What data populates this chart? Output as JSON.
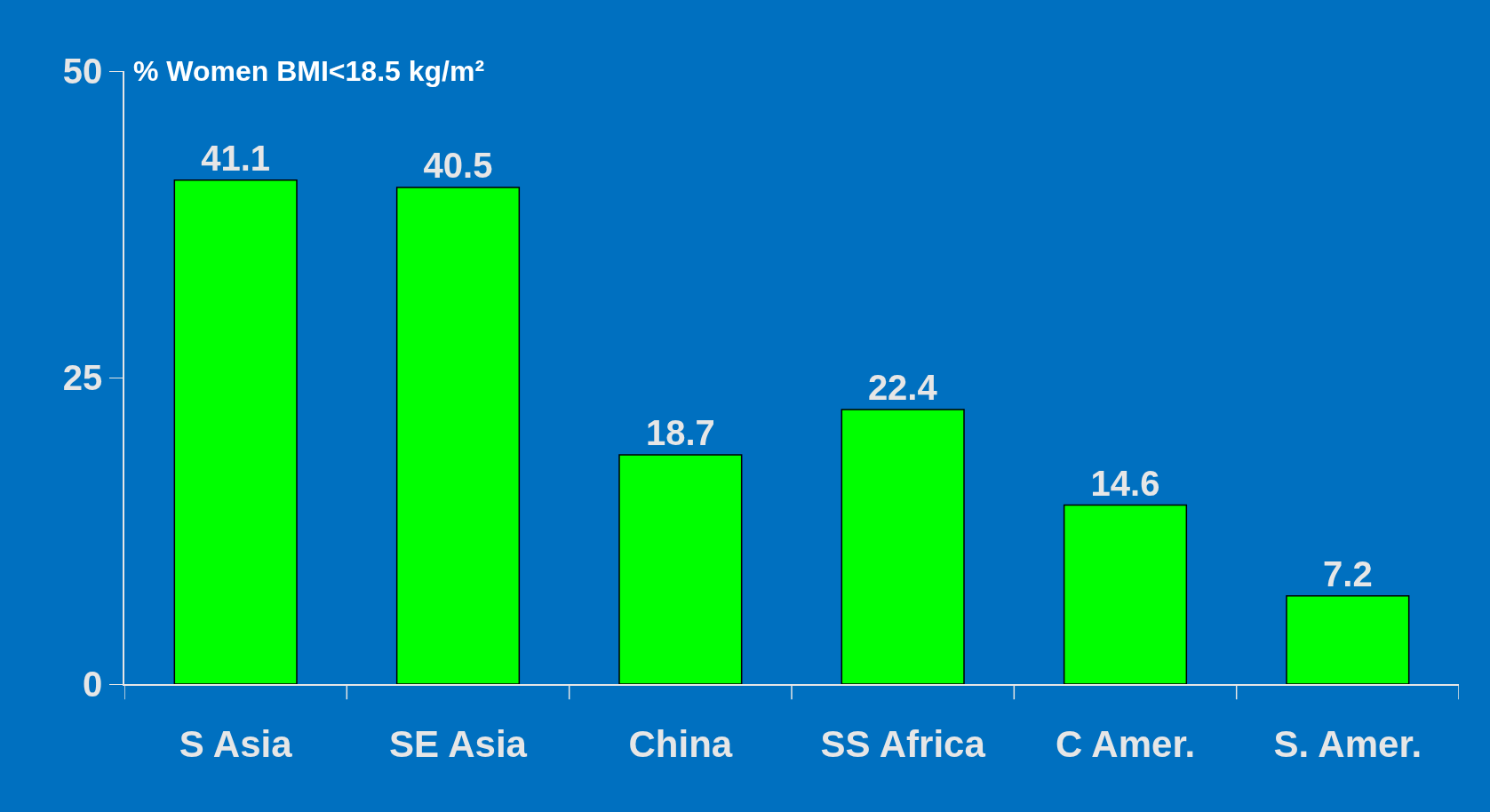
{
  "chart_data": {
    "type": "bar",
    "ylabel": "% Women BMI<18.5 kg/m²",
    "categories": [
      "S Asia",
      "SE Asia",
      "China",
      "SS Africa",
      "C Amer.",
      "S. Amer."
    ],
    "values": [
      41.1,
      40.5,
      18.7,
      22.4,
      14.6,
      7.2
    ],
    "color": "#00ff00",
    "ylim": [
      0,
      50
    ],
    "yticks": [
      0,
      25,
      50
    ],
    "grid": false,
    "data_labels": true
  }
}
